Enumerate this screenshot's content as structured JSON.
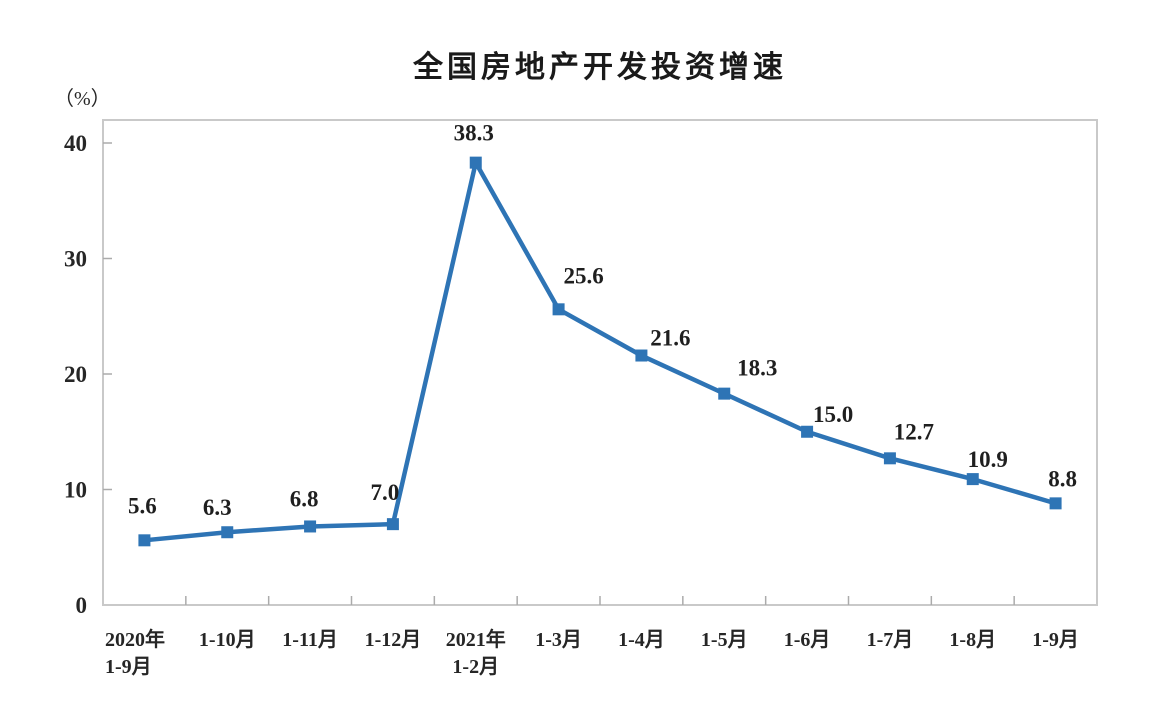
{
  "chart_data": {
    "type": "line",
    "title": "全国房地产开发投资增速",
    "unit_label": "（%）",
    "categories": [
      [
        "2020年",
        "1-9月"
      ],
      [
        "1-10月"
      ],
      [
        "1-11月"
      ],
      [
        "1-12月"
      ],
      [
        "2021年",
        "1-2月"
      ],
      [
        "1-3月"
      ],
      [
        "1-4月"
      ],
      [
        "1-5月"
      ],
      [
        "1-6月"
      ],
      [
        "1-7月"
      ],
      [
        "1-8月"
      ],
      [
        "1-9月"
      ]
    ],
    "values": [
      5.6,
      6.3,
      6.8,
      7.0,
      38.3,
      25.6,
      21.6,
      18.3,
      15.0,
      12.7,
      10.9,
      8.8
    ],
    "data_labels": [
      "5.6",
      "6.3",
      "6.8",
      "7.0",
      "38.3",
      "25.6",
      "21.6",
      "18.3",
      "15.0",
      "12.7",
      "10.9",
      "8.8"
    ],
    "y_ticks": [
      0,
      10,
      20,
      30,
      40
    ],
    "ylim": [
      0,
      42
    ],
    "grid": false,
    "legend": "none",
    "marker": "square",
    "colors": {
      "line": "#2E74B5",
      "marker": "#2E74B5",
      "plot_border": "#C9C9C9",
      "tick": "#ABABAB",
      "text": "#262626",
      "title_text": "#1A1A1A"
    }
  }
}
